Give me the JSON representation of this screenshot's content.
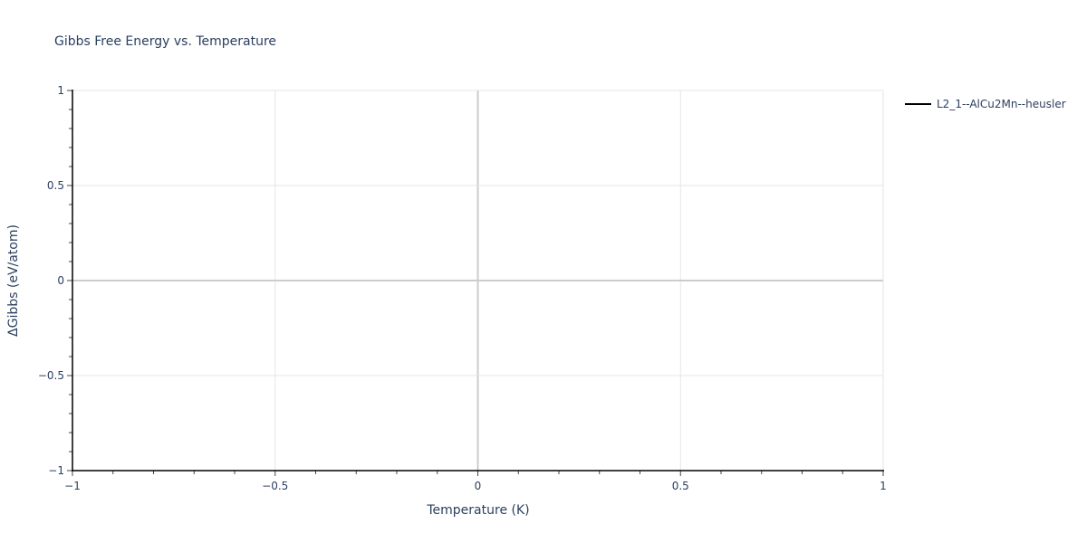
{
  "chart_data": {
    "type": "line",
    "title": "Gibbs Free Energy vs. Temperature",
    "xlabel": "Temperature (K)",
    "ylabel": "ΔGibbs (eV/atom)",
    "xlim": [
      -1,
      1
    ],
    "ylim": [
      -1,
      1
    ],
    "x_ticks": [
      -1,
      -0.5,
      0,
      0.5,
      1
    ],
    "x_tick_labels": [
      "−1",
      "−0.5",
      "0",
      "0.5",
      "1"
    ],
    "y_ticks": [
      -1,
      -0.5,
      0,
      0.5,
      1
    ],
    "y_tick_labels": [
      "−1",
      "−0.5",
      "0",
      "0.5",
      "1"
    ],
    "grid": true,
    "legend_position": "top-right",
    "series": [
      {
        "name": "L2_1--AlCu2Mn--heusler",
        "color": "#000000",
        "x": [],
        "y": []
      }
    ]
  }
}
